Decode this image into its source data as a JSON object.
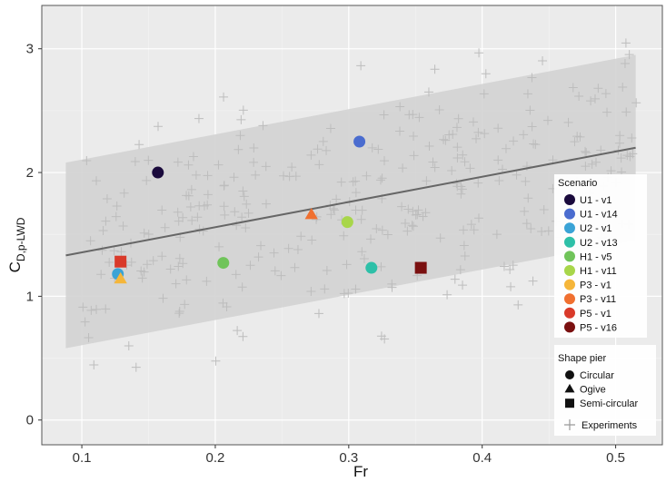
{
  "chart_data": {
    "type": "scatter",
    "title": "",
    "xlabel": "Fr",
    "ylabel": {
      "main": "C",
      "sub": "D,p-LWD"
    },
    "xlim": [
      0.07,
      0.535
    ],
    "ylim": [
      -0.2,
      3.35
    ],
    "x_ticks": [
      0.1,
      0.2,
      0.3,
      0.4,
      0.5
    ],
    "y_ticks": [
      0,
      1,
      2,
      3
    ],
    "x_tick_labels": [
      "0.1",
      "0.2",
      "0.3",
      "0.4",
      "0.5"
    ],
    "y_tick_labels": [
      "0",
      "1",
      "2",
      "3"
    ],
    "grid": true,
    "background": "#ebebeb",
    "regression_line": {
      "x": [
        0.088,
        0.515
      ],
      "y": [
        1.33,
        2.2
      ],
      "color": "#666666"
    },
    "confidence_band": {
      "x": [
        0.088,
        0.515
      ],
      "upper": [
        2.08,
        2.95
      ],
      "lower": [
        0.58,
        1.45
      ],
      "color": "#d3d3d3"
    },
    "experiments": {
      "name": "Experiments",
      "marker": "cross",
      "color": "#bdbdbd",
      "seed": 12345,
      "count": 320,
      "x_range": [
        0.1,
        0.52
      ],
      "note_spread": 0.45
    },
    "series": [
      {
        "name": "U1 - v1",
        "color": "#1a0a3c",
        "shape": "circle",
        "x": 0.157,
        "y": 2.0
      },
      {
        "name": "U1 - v14",
        "color": "#4a6ccf",
        "shape": "circle",
        "x": 0.308,
        "y": 2.25
      },
      {
        "name": "U2 - v1",
        "color": "#3aa3d6",
        "shape": "circle",
        "x": 0.127,
        "y": 1.18
      },
      {
        "name": "U2 - v13",
        "color": "#2ec0a8",
        "shape": "circle",
        "x": 0.317,
        "y": 1.23
      },
      {
        "name": "H1 - v5",
        "color": "#70c45a",
        "shape": "circle",
        "x": 0.206,
        "y": 1.27
      },
      {
        "name": "H1 - v11",
        "color": "#a8d64a",
        "shape": "circle",
        "x": 0.299,
        "y": 1.6
      },
      {
        "name": "P3 - v1",
        "color": "#f5b63a",
        "shape": "triangle",
        "x": 0.129,
        "y": 1.14
      },
      {
        "name": "P3 - v11",
        "color": "#f07030",
        "shape": "triangle",
        "x": 0.272,
        "y": 1.66
      },
      {
        "name": "P5 - v1",
        "color": "#d93a2a",
        "shape": "square",
        "x": 0.129,
        "y": 1.28
      },
      {
        "name": "P5 - v16",
        "color": "#7a1010",
        "shape": "square",
        "x": 0.354,
        "y": 1.23
      }
    ],
    "legend": {
      "placement": "right",
      "scenario_title": "Scenario",
      "shape_title": "Shape pier",
      "shapes": [
        {
          "label": "Circular",
          "shape": "circle"
        },
        {
          "label": "Ogive",
          "shape": "triangle"
        },
        {
          "label": "Semi-circular",
          "shape": "square"
        }
      ],
      "experiments_label": "Experiments"
    }
  }
}
